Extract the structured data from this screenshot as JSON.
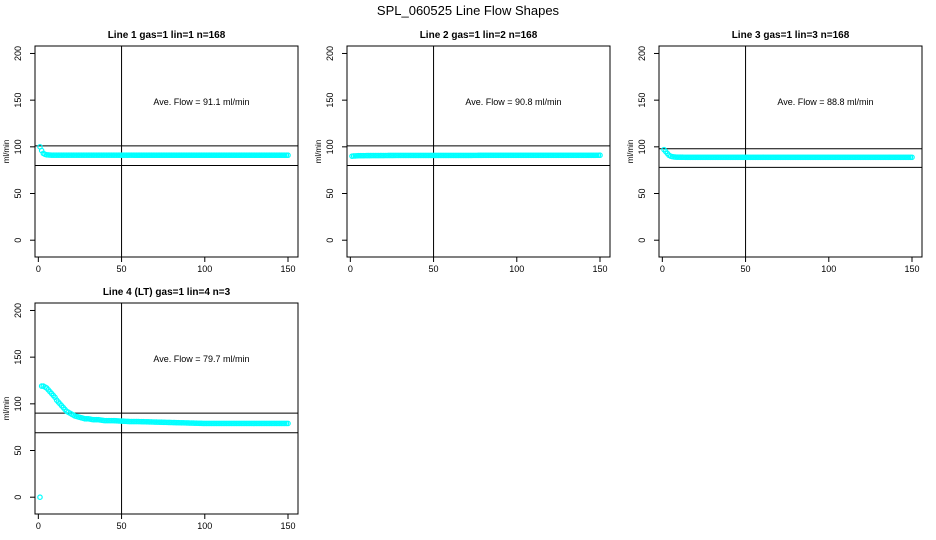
{
  "figure": {
    "title": "SPL_060525  Line Flow Shapes"
  },
  "chart_data": [
    {
      "type": "scatter",
      "title": "Line 1 gas=1 lin=1 n=168",
      "ylabel": "ml/min",
      "xlabel": "",
      "xlim": [
        -2,
        156
      ],
      "ylim": [
        -18,
        208
      ],
      "xticks": [
        0,
        50,
        100,
        150
      ],
      "yticks": [
        0,
        50,
        100,
        150,
        200
      ],
      "vline": 50,
      "hlines": [
        101,
        80
      ],
      "annotation": {
        "text": "Ave. Flow =  91.1  ml/min",
        "x": 98,
        "y": 148
      },
      "color": "#00ffff",
      "x": [
        1,
        2,
        3,
        4,
        5,
        6,
        7,
        8,
        10,
        15,
        20,
        30,
        40,
        50,
        60,
        70,
        80,
        90,
        100,
        110,
        120,
        130,
        140,
        150
      ],
      "y": [
        100,
        96,
        93,
        92,
        91.5,
        91.3,
        91.2,
        91.1,
        91.1,
        91.1,
        91.1,
        91.1,
        91.1,
        91.1,
        91,
        91,
        91,
        91,
        91,
        91,
        91,
        91,
        91,
        91
      ]
    },
    {
      "type": "scatter",
      "title": "Line 2 gas=1 lin=2 n=168",
      "ylabel": "ml/min",
      "xlabel": "",
      "xlim": [
        -2,
        156
      ],
      "ylim": [
        -18,
        208
      ],
      "xticks": [
        0,
        50,
        100,
        150
      ],
      "yticks": [
        0,
        50,
        100,
        150,
        200
      ],
      "vline": 50,
      "hlines": [
        101,
        80
      ],
      "annotation": {
        "text": "Ave. Flow =  90.8  ml/min",
        "x": 98,
        "y": 148
      },
      "color": "#00ffff",
      "x": [
        1,
        2,
        3,
        4,
        5,
        10,
        20,
        30,
        40,
        50,
        60,
        70,
        80,
        90,
        100,
        110,
        120,
        130,
        140,
        150
      ],
      "y": [
        90,
        90.2,
        90.3,
        90.4,
        90.5,
        90.6,
        90.7,
        90.8,
        90.8,
        90.8,
        90.8,
        90.8,
        90.9,
        90.9,
        90.9,
        90.9,
        90.9,
        90.9,
        90.9,
        91
      ]
    },
    {
      "type": "scatter",
      "title": "Line 3 gas=1 lin=3 n=168",
      "ylabel": "ml/min",
      "xlabel": "",
      "xlim": [
        -2,
        156
      ],
      "ylim": [
        -18,
        208
      ],
      "xticks": [
        0,
        50,
        100,
        150
      ],
      "yticks": [
        0,
        50,
        100,
        150,
        200
      ],
      "vline": 50,
      "hlines": [
        98,
        78
      ],
      "annotation": {
        "text": "Ave. Flow =  88.8  ml/min",
        "x": 98,
        "y": 148
      },
      "color": "#00ffff",
      "x": [
        1,
        2,
        3,
        4,
        5,
        6,
        7,
        8,
        10,
        15,
        20,
        30,
        40,
        50,
        60,
        70,
        80,
        90,
        100,
        110,
        120,
        130,
        140,
        150
      ],
      "y": [
        97,
        95,
        93,
        91,
        90,
        89.5,
        89.2,
        89,
        88.9,
        88.8,
        88.8,
        88.8,
        88.8,
        88.8,
        88.8,
        88.8,
        88.8,
        88.8,
        88.8,
        88.8,
        88.8,
        88.8,
        88.8,
        88.8
      ]
    },
    {
      "type": "scatter",
      "title": "Line 4 (LT) gas=1 lin=4 n=3",
      "ylabel": "ml/min",
      "xlabel": "",
      "xlim": [
        -2,
        156
      ],
      "ylim": [
        -18,
        208
      ],
      "xticks": [
        0,
        50,
        100,
        150
      ],
      "yticks": [
        0,
        50,
        100,
        150,
        200
      ],
      "vline": 50,
      "hlines": [
        90,
        69
      ],
      "annotation": {
        "text": "Ave. Flow =  79.7  ml/min",
        "x": 98,
        "y": 148
      },
      "color": "#00ffff",
      "x": [
        1,
        2,
        3,
        4,
        5,
        6,
        7,
        8,
        9,
        10,
        11,
        12,
        13,
        14,
        15,
        16,
        17,
        18,
        19,
        20,
        22,
        24,
        26,
        28,
        30,
        33,
        36,
        40,
        45,
        50,
        55,
        60,
        70,
        80,
        90,
        100,
        110,
        120,
        130,
        140,
        150
      ],
      "y": [
        0,
        119,
        119,
        118,
        117,
        115,
        113,
        111,
        109,
        107,
        104,
        102,
        100,
        98,
        96,
        94,
        92,
        91,
        90,
        89,
        87,
        86,
        85,
        84,
        84,
        83,
        83,
        82,
        82,
        81.5,
        81,
        81,
        80.5,
        80,
        79.5,
        79,
        79,
        79,
        79,
        79,
        79
      ]
    }
  ]
}
